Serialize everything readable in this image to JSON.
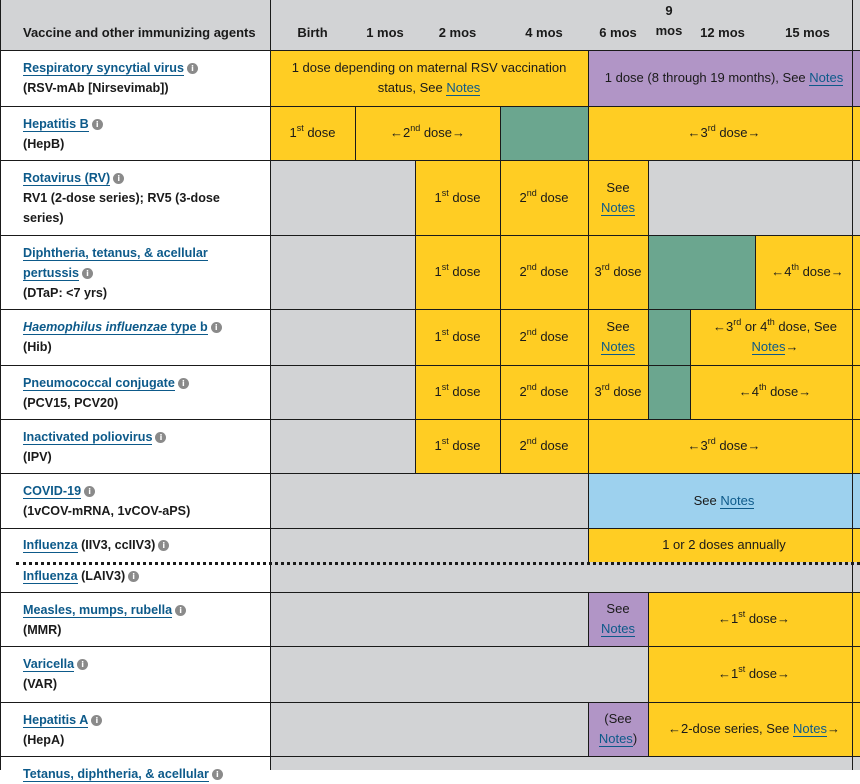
{
  "header": {
    "first": "Vaccine and other immunizing agents",
    "ages": [
      "Birth",
      "1 mos",
      "2 mos",
      "4 mos",
      "6 mos",
      "9\nmos",
      "12 mos",
      "15 mos"
    ]
  },
  "notes_link": "Notes",
  "rows": [
    {
      "name": "Respiratory syncytial virus",
      "sub": "(RSV-mAb [Nirsevimab])",
      "cells": [
        {
          "type": "text",
          "text": "1 dose depending on maternal RSV vaccination status, See ",
          "link": "Notes",
          "color": "yellow"
        },
        {
          "type": "text",
          "text": "1 dose (8 through 19 months), See ",
          "link": "Notes",
          "color": "purple"
        }
      ]
    },
    {
      "name": "Hepatitis B",
      "sub": "(HepB)",
      "cells": [
        {
          "type": "dose",
          "pre": "",
          "n": "1",
          "sup": "st",
          "post": " dose",
          "color": "yellow"
        },
        {
          "type": "dose",
          "pre": "←",
          "n": "2",
          "sup": "nd",
          "post": " dose→",
          "color": "yellow"
        },
        {
          "type": "empty",
          "color": "green"
        },
        {
          "type": "dose",
          "pre": "←",
          "n": "3",
          "sup": "rd",
          "post": " dose→",
          "color": "yellow"
        }
      ]
    },
    {
      "name": "Rotavirus (RV)",
      "sub": "RV1 (2-dose series); RV5 (3-dose series)",
      "cells": [
        {
          "type": "empty",
          "color": "gray"
        },
        {
          "type": "dose",
          "pre": "",
          "n": "1",
          "sup": "st",
          "post": " dose",
          "color": "yellow"
        },
        {
          "type": "dose",
          "pre": "",
          "n": "2",
          "sup": "nd",
          "post": " dose",
          "color": "yellow"
        },
        {
          "type": "text",
          "text": "See ",
          "link": "Notes",
          "color": "yellow"
        },
        {
          "type": "empty",
          "color": "gray"
        }
      ]
    },
    {
      "name": "Diphtheria, tetanus, & acellular pertussis",
      "sub": "(DTaP: <7 yrs)",
      "cells": [
        {
          "type": "empty",
          "color": "gray"
        },
        {
          "type": "dose",
          "pre": "",
          "n": "1",
          "sup": "st",
          "post": " dose",
          "color": "yellow"
        },
        {
          "type": "dose",
          "pre": "",
          "n": "2",
          "sup": "nd",
          "post": " dose",
          "color": "yellow"
        },
        {
          "type": "dose",
          "pre": "",
          "n": "3",
          "sup": "rd",
          "post": " dose",
          "color": "yellow"
        },
        {
          "type": "empty",
          "color": "green"
        },
        {
          "type": "dose",
          "pre": "←",
          "n": "4",
          "sup": "th",
          "post": " dose→",
          "color": "yellow"
        }
      ]
    },
    {
      "name": "Haemophilus influenzae type b",
      "sub": "(Hib)",
      "cells": [
        {
          "type": "empty",
          "color": "gray"
        },
        {
          "type": "dose",
          "pre": "",
          "n": "1",
          "sup": "st",
          "post": " dose",
          "color": "yellow"
        },
        {
          "type": "dose",
          "pre": "",
          "n": "2",
          "sup": "nd",
          "post": " dose",
          "color": "yellow"
        },
        {
          "type": "text",
          "text": "See ",
          "link": "Notes",
          "color": "yellow"
        },
        {
          "type": "empty",
          "color": "green"
        },
        {
          "type": "hib",
          "pre": "←",
          "n": "3",
          "sup": "rd",
          "mid": " or ",
          "n2": "4",
          "sup2": "th",
          "post": " dose, See ",
          "link": "Notes",
          "tail": "→",
          "color": "yellow"
        }
      ]
    },
    {
      "name": "Pneumococcal conjugate",
      "sub": "(PCV15, PCV20)",
      "cells": [
        {
          "type": "empty",
          "color": "gray"
        },
        {
          "type": "dose",
          "pre": "",
          "n": "1",
          "sup": "st",
          "post": " dose",
          "color": "yellow"
        },
        {
          "type": "dose",
          "pre": "",
          "n": "2",
          "sup": "nd",
          "post": " dose",
          "color": "yellow"
        },
        {
          "type": "dose",
          "pre": "",
          "n": "3",
          "sup": "rd",
          "post": " dose",
          "color": "yellow"
        },
        {
          "type": "empty",
          "color": "green"
        },
        {
          "type": "dose",
          "pre": "←",
          "n": "4",
          "sup": "th",
          "post": " dose→",
          "color": "yellow"
        }
      ]
    },
    {
      "name": "Inactivated poliovirus",
      "sub": "(IPV)",
      "cells": [
        {
          "type": "empty",
          "color": "gray"
        },
        {
          "type": "dose",
          "pre": "",
          "n": "1",
          "sup": "st",
          "post": " dose",
          "color": "yellow"
        },
        {
          "type": "dose",
          "pre": "",
          "n": "2",
          "sup": "nd",
          "post": " dose",
          "color": "yellow"
        },
        {
          "type": "dose",
          "pre": "←",
          "n": "3",
          "sup": "rd",
          "post": " dose→",
          "color": "yellow"
        }
      ]
    },
    {
      "name": "COVID-19",
      "sub": "(1vCOV-mRNA, 1vCOV-aPS)",
      "cells": [
        {
          "type": "empty",
          "color": "gray"
        },
        {
          "type": "text",
          "text": "See ",
          "link": "Notes",
          "color": "blue"
        }
      ]
    },
    {
      "name": "Influenza",
      "name_extra": " (IIV3, ccIIV3)",
      "sub": "",
      "cells": [
        {
          "type": "empty",
          "color": "gray"
        },
        {
          "type": "text",
          "text": "1 or 2 doses annually",
          "link": "",
          "color": "yellow"
        }
      ]
    },
    {
      "name": "Influenza",
      "name_extra": " (LAIV3)",
      "sub": "",
      "cells": [
        {
          "type": "empty",
          "color": "gray"
        }
      ]
    },
    {
      "name": "Measles, mumps, rubella",
      "sub": "(MMR)",
      "cells": [
        {
          "type": "empty",
          "color": "gray"
        },
        {
          "type": "text",
          "text": "See ",
          "link": "Notes",
          "color": "purple"
        },
        {
          "type": "dose",
          "pre": "←",
          "n": "1",
          "sup": "st",
          "post": " dose→",
          "color": "yellow"
        }
      ]
    },
    {
      "name": "Varicella",
      "sub": "(VAR)",
      "cells": [
        {
          "type": "empty",
          "color": "gray"
        },
        {
          "type": "dose",
          "pre": "←",
          "n": "1",
          "sup": "st",
          "post": " dose→",
          "color": "yellow"
        }
      ]
    },
    {
      "name": "Hepatitis A",
      "sub": "(HepA)",
      "cells": [
        {
          "type": "empty",
          "color": "gray"
        },
        {
          "type": "text",
          "text": "(See ",
          "link": "Notes",
          "tail": ")",
          "color": "purple"
        },
        {
          "type": "text",
          "text": "←2-dose series, See ",
          "link": "Notes",
          "tail": "→",
          "color": "yellow"
        }
      ]
    },
    {
      "name": "Tetanus, diphtheria, & acellular",
      "sub": "",
      "cells": [
        {
          "type": "empty",
          "color": "gray"
        }
      ]
    }
  ]
}
